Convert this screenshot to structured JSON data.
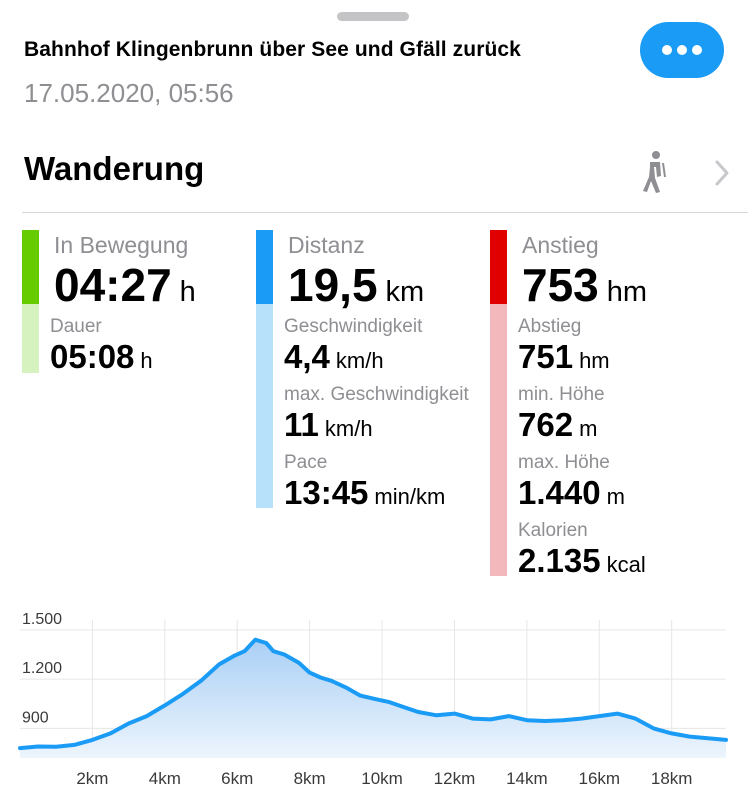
{
  "header": {
    "title": "Bahnhof Klingenbrunn über See und Gfäll zurück",
    "date": "17.05.2020, 05:56",
    "more_icon": "ellipsis-icon"
  },
  "activity": {
    "name": "Wanderung",
    "icon": "hiker-icon"
  },
  "colors": {
    "accent": "#1a9bf5",
    "green": "#66cc00",
    "green_light": "#d6f2bf",
    "blue": "#1a9bf5",
    "blue_light": "#b7e0fb",
    "red": "#e00000",
    "red_light": "#f2b8bc"
  },
  "stats": {
    "movement": {
      "label": "In Bewegung",
      "value": "04:27",
      "unit": "h",
      "subs": [
        {
          "label": "Dauer",
          "value": "05:08",
          "unit": "h"
        }
      ]
    },
    "distance": {
      "label": "Distanz",
      "value": "19,5",
      "unit": "km",
      "subs": [
        {
          "label": "Geschwindigkeit",
          "value": "4,4",
          "unit": "km/h"
        },
        {
          "label": "max. Geschwindigkeit",
          "value": "11",
          "unit": "km/h"
        },
        {
          "label": "Pace",
          "value": "13:45",
          "unit": "min/km"
        }
      ]
    },
    "ascent": {
      "label": "Anstieg",
      "value": "753",
      "unit": "hm",
      "subs": [
        {
          "label": "Abstieg",
          "value": "751",
          "unit": "hm"
        },
        {
          "label": "min. Höhe",
          "value": "762",
          "unit": "m"
        },
        {
          "label": "max. Höhe",
          "value": "1.440",
          "unit": "m"
        },
        {
          "label": "Kalorien",
          "value": "2.135",
          "unit": "kcal"
        }
      ]
    }
  },
  "chart_data": {
    "type": "area",
    "title": "",
    "xlabel": "",
    "ylabel": "",
    "xlim": [
      0,
      19.5
    ],
    "ylim": [
      720,
      1560
    ],
    "y_ticks": [
      900,
      1200,
      1500
    ],
    "y_tick_labels": [
      "900",
      "1.200",
      "1.500"
    ],
    "x_ticks": [
      2,
      4,
      6,
      8,
      10,
      12,
      14,
      16,
      18
    ],
    "x_tick_labels": [
      "2km",
      "4km",
      "6km",
      "8km",
      "10km",
      "12km",
      "14km",
      "16km",
      "18km"
    ],
    "grid": true,
    "x": [
      0,
      0.5,
      1.0,
      1.5,
      2.0,
      2.5,
      3.0,
      3.5,
      4.0,
      4.5,
      5.0,
      5.5,
      5.9,
      6.2,
      6.5,
      6.8,
      7.0,
      7.3,
      7.7,
      8.0,
      8.3,
      8.6,
      9.0,
      9.4,
      9.8,
      10.2,
      10.6,
      11.0,
      11.5,
      12.0,
      12.5,
      13.0,
      13.5,
      14.0,
      14.5,
      15.0,
      15.5,
      16.0,
      16.5,
      17.0,
      17.5,
      18.0,
      18.5,
      19.0,
      19.5
    ],
    "values": [
      780,
      790,
      788,
      800,
      830,
      870,
      930,
      975,
      1040,
      1110,
      1190,
      1290,
      1340,
      1370,
      1440,
      1420,
      1370,
      1350,
      1300,
      1240,
      1210,
      1190,
      1150,
      1100,
      1080,
      1060,
      1030,
      1000,
      980,
      990,
      960,
      955,
      975,
      950,
      945,
      950,
      960,
      975,
      990,
      960,
      900,
      870,
      850,
      840,
      830
    ],
    "colors": {
      "line": "#1a9bf5",
      "fill_top": "#a9cff5",
      "fill_bottom": "#edf5fd",
      "grid": "#e6e6e6"
    }
  }
}
